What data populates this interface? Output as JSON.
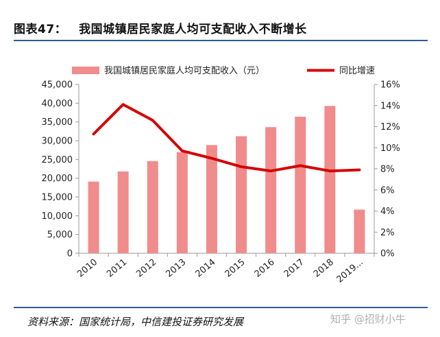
{
  "header": {
    "figure_label": "图表47：",
    "title_text": "我国城镇居民家庭人均可支配收入不断增长"
  },
  "footer": {
    "source": "资料来源：国家统计局，中信建投证券研究发展",
    "watermark": "知乎 @招财小牛"
  },
  "colors": {
    "bar": "#f08c8c",
    "line": "#d40000",
    "rule": "#2e5b92",
    "axis": "#9a9a9a"
  },
  "chart_data": {
    "type": "bar",
    "title": "我国城镇居民家庭人均可支配收入不断增长",
    "categories": [
      "2010",
      "2011",
      "2012",
      "2013",
      "2014",
      "2015",
      "2016",
      "2017",
      "2018",
      "2019..."
    ],
    "series": [
      {
        "name": "我国城镇居民家庭人均可支配收入（元）",
        "type": "bar",
        "axis": "left",
        "values": [
          19109,
          21810,
          24565,
          26955,
          28844,
          31195,
          33616,
          36396,
          39251,
          11633
        ]
      },
      {
        "name": "同比增速",
        "type": "line",
        "axis": "right",
        "values": [
          11.3,
          14.1,
          12.6,
          9.7,
          9.0,
          8.2,
          7.8,
          8.3,
          7.8,
          7.9
        ]
      }
    ],
    "y_left": {
      "min": 0,
      "max": 45000,
      "step": 5000,
      "tick_labels": [
        "0",
        "5,000",
        "10,000",
        "15,000",
        "20,000",
        "25,000",
        "30,000",
        "35,000",
        "40,000",
        "45,000"
      ]
    },
    "y_right": {
      "min": 0,
      "max": 16,
      "step": 2,
      "tick_labels": [
        "0%",
        "2%",
        "4%",
        "6%",
        "8%",
        "10%",
        "12%",
        "14%",
        "16%"
      ]
    },
    "legend_position": "top",
    "grid": false
  }
}
